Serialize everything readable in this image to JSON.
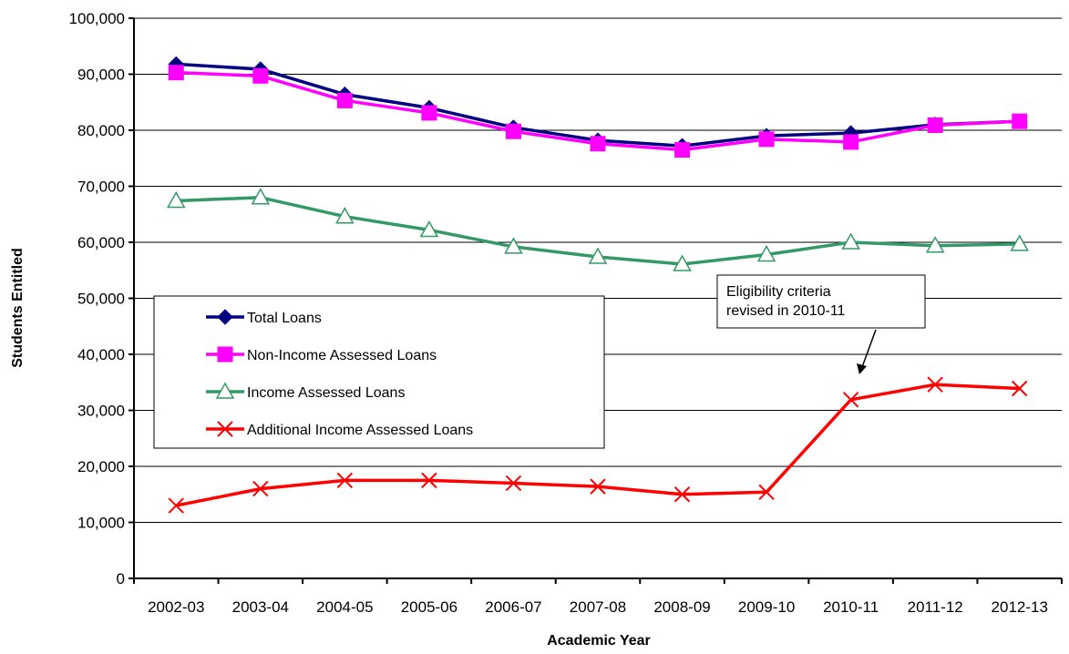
{
  "chart_data": {
    "type": "line",
    "title": "",
    "xlabel": "Academic Year",
    "ylabel": "Students Entitled",
    "categories": [
      "2002-03",
      "2003-04",
      "2004-05",
      "2005-06",
      "2006-07",
      "2007-08",
      "2008-09",
      "2009-10",
      "2010-11",
      "2011-12",
      "2012-13"
    ],
    "ylim": [
      0,
      100000
    ],
    "ytick_labels": [
      "0",
      "10,000",
      "20,000",
      "30,000",
      "40,000",
      "50,000",
      "60,000",
      "70,000",
      "80,000",
      "90,000",
      "100,000"
    ],
    "grid": "horizontal",
    "legend_position": "middle-left",
    "series": [
      {
        "name": "Total Loans",
        "color": "#000080",
        "marker": "diamond",
        "values": [
          91800,
          90900,
          86400,
          84000,
          80500,
          78200,
          77200,
          79000,
          79500,
          81000,
          81600
        ]
      },
      {
        "name": "Non-Income Assessed Loans",
        "color": "#FF00FF",
        "marker": "square",
        "values": [
          90300,
          89700,
          85300,
          83100,
          79800,
          77600,
          76500,
          78400,
          77900,
          80900,
          81600
        ]
      },
      {
        "name": "Income Assessed Loans",
        "color": "#339966",
        "marker": "triangle",
        "values": [
          67400,
          68000,
          64600,
          62200,
          59200,
          57400,
          56100,
          57800,
          60000,
          59400,
          59700
        ]
      },
      {
        "name": "Additional Income Assessed Loans",
        "color": "#FF0000",
        "marker": "x",
        "values": [
          13000,
          16000,
          17500,
          17500,
          17000,
          16400,
          15000,
          15400,
          31900,
          34600,
          33900
        ]
      }
    ],
    "annotation": {
      "lines": [
        "Eligibility criteria",
        "revised in 2010-11"
      ],
      "points_to_category": "2010-11"
    }
  }
}
